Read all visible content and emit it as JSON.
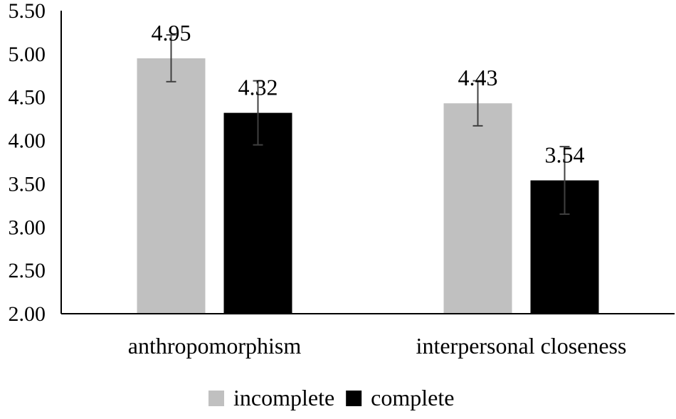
{
  "chart_data": {
    "type": "bar",
    "title": "",
    "xlabel": "",
    "ylabel": "",
    "categories": [
      "anthropomorphism",
      "interpersonal closeness"
    ],
    "ylim": [
      2.0,
      5.5
    ],
    "yticks": [
      "2.00",
      "2.50",
      "3.00",
      "3.50",
      "4.00",
      "4.50",
      "5.00",
      "5.50"
    ],
    "grid": false,
    "legend_position": "bottom",
    "series": [
      {
        "name": "incomplete",
        "color": "#c0c0c0",
        "values": [
          4.95,
          4.43
        ],
        "labels": [
          "4.95",
          "4.43"
        ],
        "error": [
          0.27,
          0.26
        ]
      },
      {
        "name": "complete",
        "color": "#000000",
        "values": [
          4.32,
          3.54
        ],
        "labels": [
          "4.32",
          "3.54"
        ],
        "error": [
          0.37,
          0.39
        ]
      }
    ]
  }
}
